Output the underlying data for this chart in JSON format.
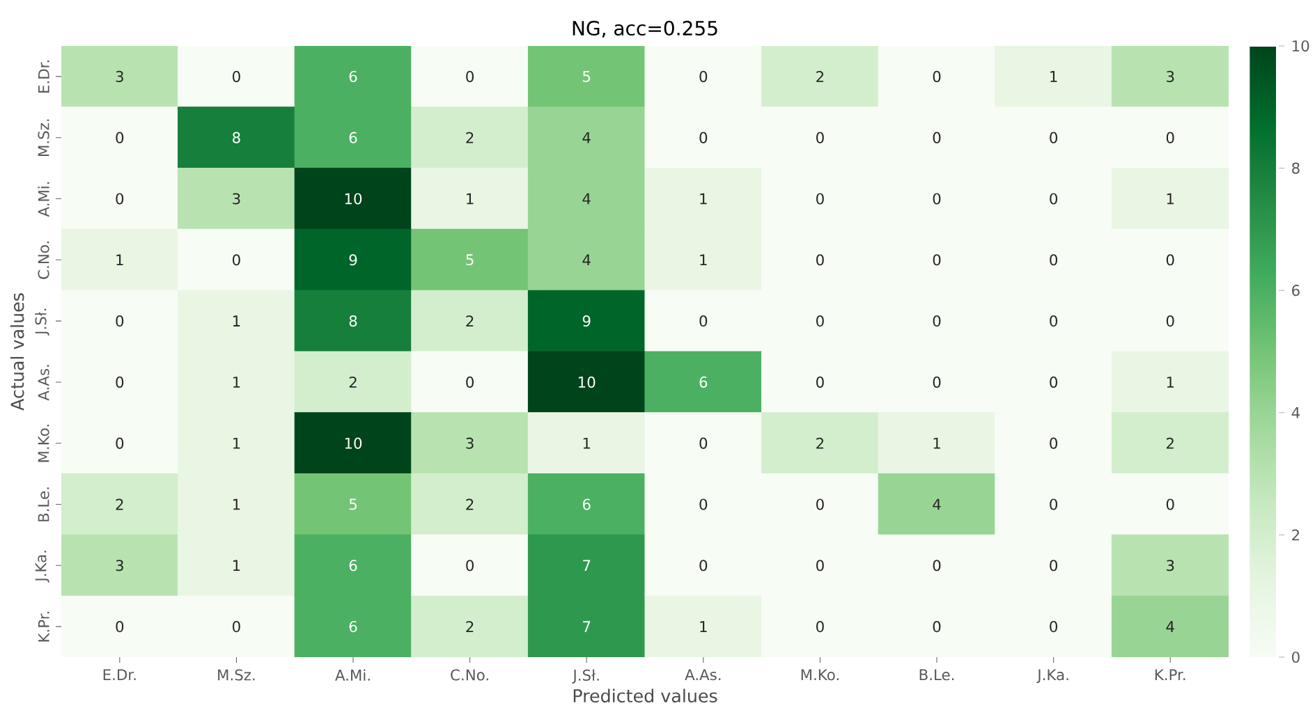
{
  "chart_data": {
    "type": "heatmap",
    "title": "NG, acc=0.255",
    "xlabel": "Predicted values",
    "ylabel": "Actual values",
    "categories": [
      "E.Dr.",
      "M.Sz.",
      "A.Mi.",
      "C.No.",
      "J.Sł.",
      "A.As.",
      "M.Ko.",
      "B.Le.",
      "J.Ka.",
      "K.Pr."
    ],
    "y_categories": [
      "E.Dr.",
      "M.Sz.",
      "A.Mi.",
      "C.No.",
      "J.Sł.",
      "A.As.",
      "M.Ko.",
      "B.Le.",
      "J.Ka.",
      "K.Pr."
    ],
    "cells": [
      [
        3,
        0,
        6,
        0,
        5,
        0,
        2,
        0,
        1,
        3
      ],
      [
        0,
        8,
        6,
        2,
        4,
        0,
        0,
        0,
        0,
        0
      ],
      [
        0,
        3,
        10,
        1,
        4,
        1,
        0,
        0,
        0,
        1
      ],
      [
        1,
        0,
        9,
        5,
        4,
        1,
        0,
        0,
        0,
        0
      ],
      [
        0,
        1,
        8,
        2,
        9,
        0,
        0,
        0,
        0,
        0
      ],
      [
        0,
        1,
        2,
        0,
        10,
        6,
        0,
        0,
        0,
        1
      ],
      [
        0,
        1,
        10,
        3,
        1,
        0,
        2,
        1,
        0,
        2
      ],
      [
        2,
        1,
        5,
        2,
        6,
        0,
        0,
        4,
        0,
        0
      ],
      [
        3,
        1,
        6,
        0,
        7,
        0,
        0,
        0,
        0,
        3
      ],
      [
        0,
        0,
        6,
        2,
        7,
        1,
        0,
        0,
        0,
        4
      ]
    ],
    "clim": [
      0,
      10
    ],
    "cticks": [
      0,
      2,
      4,
      6,
      8,
      10
    ],
    "data_labels": true
  }
}
